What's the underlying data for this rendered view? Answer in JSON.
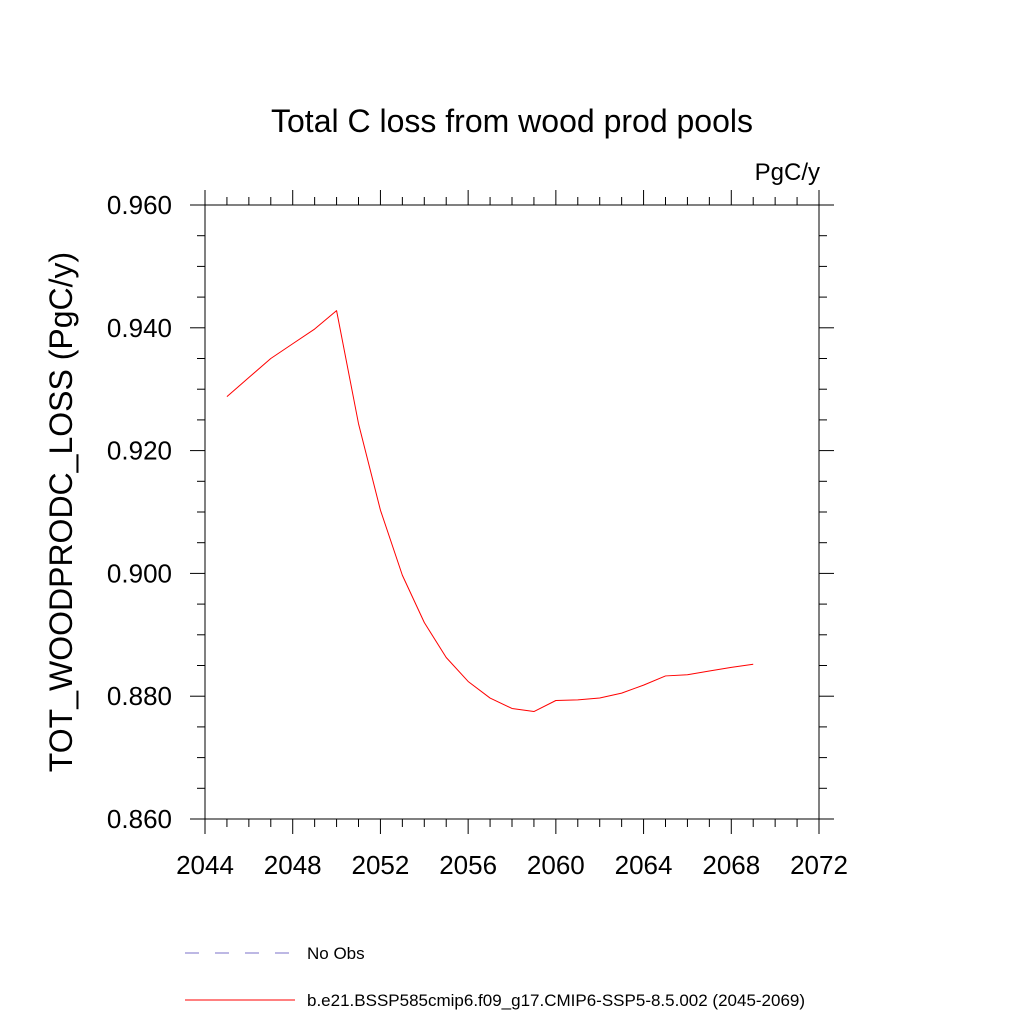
{
  "chart_data": {
    "type": "line",
    "title": "Total C loss from wood prod pools",
    "units_label": "PgC/y",
    "xlabel": "",
    "ylabel": "TOT_WOODPRODC_LOSS  (PgC/y)",
    "xlim": [
      2044,
      2072
    ],
    "ylim": [
      0.86,
      0.96
    ],
    "x_ticks": [
      2044,
      2048,
      2052,
      2056,
      2060,
      2064,
      2068,
      2072
    ],
    "x_tick_labels": [
      "2044",
      "2048",
      "2052",
      "2056",
      "2060",
      "2064",
      "2068",
      "2072"
    ],
    "y_ticks": [
      0.86,
      0.88,
      0.9,
      0.92,
      0.94,
      0.96
    ],
    "y_tick_labels": [
      "0.860",
      "0.880",
      "0.900",
      "0.920",
      "0.940",
      "0.960"
    ],
    "grid": false,
    "legend_position": "bottom",
    "legend": [
      {
        "name": "No Obs",
        "color": "#7b72c9",
        "style": "dashed"
      },
      {
        "name": "b.e21.BSSP585cmip6.f09_g17.CMIP6-SSP5-8.5.002 (2045-2069)",
        "color": "#ff0000",
        "style": "solid"
      }
    ],
    "series": [
      {
        "name": "b.e21.BSSP585cmip6.f09_g17.CMIP6-SSP5-8.5.002 (2045-2069)",
        "color": "#ff0000",
        "x": [
          2045,
          2046,
          2047,
          2048,
          2049,
          2050,
          2051,
          2052,
          2053,
          2054,
          2055,
          2056,
          2057,
          2058,
          2059,
          2060,
          2061,
          2062,
          2063,
          2064,
          2065,
          2066,
          2067,
          2068,
          2069
        ],
        "y": [
          0.9288,
          0.9319,
          0.935,
          0.9374,
          0.9398,
          0.9428,
          0.9244,
          0.9103,
          0.8997,
          0.892,
          0.8863,
          0.8824,
          0.8797,
          0.878,
          0.8775,
          0.8793,
          0.8794,
          0.8797,
          0.8805,
          0.8818,
          0.8833,
          0.8835,
          0.8841,
          0.8847,
          0.8852
        ]
      }
    ]
  }
}
